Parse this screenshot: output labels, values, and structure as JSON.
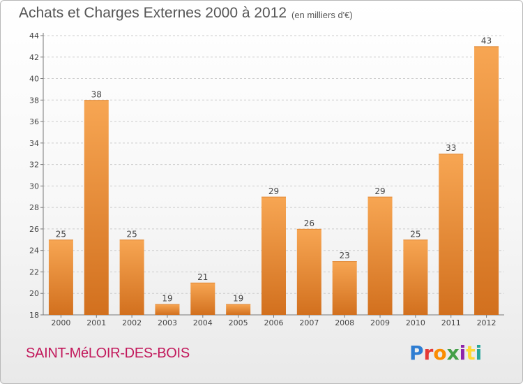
{
  "header": {
    "title": "Achats et Charges Externes 2000 à 2012",
    "subtitle": "(en milliers d'€)"
  },
  "footer": {
    "commune": "SAINT-MéLOIR-DES-BOIS",
    "logo": {
      "text": "Proxiti",
      "letters": [
        "P",
        "r",
        "o",
        "x",
        "i",
        "t",
        "i"
      ],
      "colors": [
        "#2e7dd2",
        "#e53935",
        "#fb8c00",
        "#43a047",
        "#8e24aa",
        "#fdd835",
        "#26a69a"
      ]
    }
  },
  "colors": {
    "bar_light": "#f7a653",
    "bar_dark": "#d2701e",
    "grid": "#cccccc",
    "axis": "#777777"
  },
  "chart_data": {
    "type": "bar",
    "categories": [
      "2000",
      "2001",
      "2002",
      "2003",
      "2004",
      "2005",
      "2006",
      "2007",
      "2008",
      "2009",
      "2010",
      "2011",
      "2012"
    ],
    "values": [
      25,
      38,
      25,
      19,
      21,
      19,
      29,
      26,
      23,
      29,
      25,
      33,
      43
    ],
    "title": "Achats et Charges Externes 2000 à 2012",
    "subtitle": "(en milliers d'€)",
    "ylim": [
      18,
      44
    ],
    "yticks": [
      18,
      20,
      22,
      24,
      26,
      28,
      30,
      32,
      34,
      36,
      38,
      40,
      42,
      44
    ],
    "grid": "horizontal dashed",
    "data_labels": true
  }
}
